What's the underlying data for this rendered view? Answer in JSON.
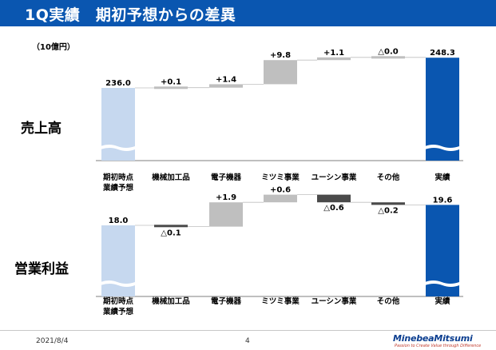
{
  "header": {
    "title": "1Q実績　期初予想からの差異"
  },
  "unit_label": "（10億円）",
  "footer": {
    "date": "2021/8/4",
    "page_number": "4",
    "logo_text": "MinebeaMitsumi",
    "logo_tagline": "Passion to Create Value through Difference"
  },
  "colors": {
    "header_bg": "#0a56b0",
    "baseline_bar": "#c6d8ef",
    "actual_bar": "#0a56b0",
    "increase_bar": "#bfbfbf",
    "decrease_bar": "#4a4a4a"
  },
  "chart_data": [
    {
      "type": "waterfall",
      "title": "売上高",
      "categories": [
        "期初時点\n業績予想",
        "機械加工品",
        "電子機器",
        "ミツミ事業",
        "ユーシン事業",
        "その他",
        "実績"
      ],
      "category_lines": [
        [
          "期初時点",
          "業績予想"
        ],
        [
          "機械加工品"
        ],
        [
          "電子機器"
        ],
        [
          "ミツミ事業"
        ],
        [
          "ユーシン事業"
        ],
        [
          "その他"
        ],
        [
          "実績"
        ]
      ],
      "values": [
        236.0,
        0.1,
        1.4,
        9.8,
        1.1,
        0.0,
        248.3
      ],
      "kinds": [
        "total",
        "delta",
        "delta",
        "delta",
        "delta",
        "delta",
        "total"
      ],
      "labels": [
        "236.0",
        "+0.1",
        "+1.4",
        "+9.8",
        "+1.1",
        "△0.0",
        "248.3"
      ],
      "axis_broken": true
    },
    {
      "type": "waterfall",
      "title": "営業利益",
      "categories": [
        "期初時点\n業績予想",
        "機械加工品",
        "電子機器",
        "ミツミ事業",
        "ユーシン事業",
        "その他",
        "実績"
      ],
      "category_lines": [
        [
          "期初時点",
          "業績予想"
        ],
        [
          "機械加工品"
        ],
        [
          "電子機器"
        ],
        [
          "ミツミ事業"
        ],
        [
          "ユーシン事業"
        ],
        [
          "その他"
        ],
        [
          "実績"
        ]
      ],
      "values": [
        18.0,
        -0.1,
        1.9,
        0.6,
        -0.6,
        -0.2,
        19.6
      ],
      "kinds": [
        "total",
        "delta",
        "delta",
        "delta",
        "delta",
        "delta",
        "total"
      ],
      "labels": [
        "18.0",
        "△0.1",
        "+1.9",
        "+0.6",
        "△0.6",
        "△0.2",
        "19.6"
      ],
      "axis_broken": true
    }
  ]
}
